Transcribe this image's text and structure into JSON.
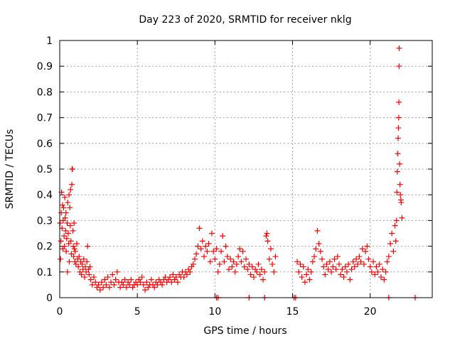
{
  "chart_data": {
    "type": "scatter",
    "title": "Day 223 of 2020, SRMTID for receiver nklg",
    "xlabel": "GPS time / hours",
    "ylabel": "SRMTID / TECUs",
    "xlim": [
      0,
      24
    ],
    "ylim": [
      0,
      1
    ],
    "xticks": [
      0,
      5,
      10,
      15,
      20
    ],
    "xtick_labels": [
      "0",
      "5",
      "10",
      "15",
      "20"
    ],
    "yticks": [
      0,
      0.1,
      0.2,
      0.3,
      0.4,
      0.5,
      0.6,
      0.7,
      0.8,
      0.9,
      1
    ],
    "ytick_labels": [
      "0",
      "0.1",
      "0.2",
      "0.3",
      "0.4",
      "0.5",
      "0.6",
      "0.7",
      "0.8",
      "0.9",
      "1"
    ],
    "grid": true,
    "marker": "+",
    "series": [
      {
        "name": "SRMTID",
        "color": "#ff0000",
        "points": [
          [
            0.02,
            0.29
          ],
          [
            0.05,
            0.15
          ],
          [
            0.08,
            0.22
          ],
          [
            0.1,
            0.33
          ],
          [
            0.12,
            0.41
          ],
          [
            0.15,
            0.27
          ],
          [
            0.18,
            0.36
          ],
          [
            0.2,
            0.19
          ],
          [
            0.22,
            0.3
          ],
          [
            0.25,
            0.35
          ],
          [
            0.28,
            0.24
          ],
          [
            0.3,
            0.2
          ],
          [
            0.33,
            0.39
          ],
          [
            0.35,
            0.31
          ],
          [
            0.38,
            0.26
          ],
          [
            0.4,
            0.33
          ],
          [
            0.42,
            0.18
          ],
          [
            0.45,
            0.23
          ],
          [
            0.48,
            0.29
          ],
          [
            0.5,
            0.1
          ],
          [
            0.52,
            0.37
          ],
          [
            0.55,
            0.25
          ],
          [
            0.58,
            0.21
          ],
          [
            0.6,
            0.4
          ],
          [
            0.62,
            0.14
          ],
          [
            0.65,
            0.35
          ],
          [
            0.68,
            0.28
          ],
          [
            0.7,
            0.42
          ],
          [
            0.72,
            0.22
          ],
          [
            0.75,
            0.17
          ],
          [
            0.78,
            0.44
          ],
          [
            0.8,
            0.5
          ],
          [
            0.82,
            0.5
          ],
          [
            0.85,
            0.26
          ],
          [
            0.88,
            0.2
          ],
          [
            0.9,
            0.16
          ],
          [
            0.92,
            0.29
          ],
          [
            0.95,
            0.19
          ],
          [
            0.98,
            0.14
          ],
          [
            1.0,
            0.18
          ],
          [
            1.05,
            0.13
          ],
          [
            1.1,
            0.21
          ],
          [
            1.15,
            0.15
          ],
          [
            1.2,
            0.12
          ],
          [
            1.25,
            0.16
          ],
          [
            1.3,
            0.1
          ],
          [
            1.35,
            0.14
          ],
          [
            1.4,
            0.09
          ],
          [
            1.45,
            0.13
          ],
          [
            1.5,
            0.11
          ],
          [
            1.55,
            0.15
          ],
          [
            1.6,
            0.08
          ],
          [
            1.65,
            0.12
          ],
          [
            1.7,
            0.1
          ],
          [
            1.75,
            0.14
          ],
          [
            1.8,
            0.2
          ],
          [
            1.85,
            0.11
          ],
          [
            1.9,
            0.09
          ],
          [
            1.95,
            0.12
          ],
          [
            2.0,
            0.07
          ],
          [
            2.1,
            0.05
          ],
          [
            2.2,
            0.08
          ],
          [
            2.3,
            0.06
          ],
          [
            2.4,
            0.04
          ],
          [
            2.5,
            0.05
          ],
          [
            2.6,
            0.03
          ],
          [
            2.7,
            0.06
          ],
          [
            2.8,
            0.04
          ],
          [
            2.9,
            0.07
          ],
          [
            3.0,
            0.05
          ],
          [
            3.1,
            0.08
          ],
          [
            3.2,
            0.04
          ],
          [
            3.3,
            0.06
          ],
          [
            3.4,
            0.09
          ],
          [
            3.5,
            0.05
          ],
          [
            3.6,
            0.07
          ],
          [
            3.7,
            0.1
          ],
          [
            3.8,
            0.06
          ],
          [
            3.9,
            0.04
          ],
          [
            4.0,
            0.06
          ],
          [
            4.1,
            0.05
          ],
          [
            4.2,
            0.07
          ],
          [
            4.3,
            0.04
          ],
          [
            4.4,
            0.06
          ],
          [
            4.5,
            0.05
          ],
          [
            4.6,
            0.07
          ],
          [
            4.7,
            0.04
          ],
          [
            4.8,
            0.05
          ],
          [
            4.9,
            0.06
          ],
          [
            5.0,
            0.05
          ],
          [
            5.1,
            0.07
          ],
          [
            5.2,
            0.06
          ],
          [
            5.3,
            0.08
          ],
          [
            5.4,
            0.05
          ],
          [
            5.5,
            0.03
          ],
          [
            5.6,
            0.06
          ],
          [
            5.7,
            0.04
          ],
          [
            5.8,
            0.05
          ],
          [
            5.9,
            0.07
          ],
          [
            6.0,
            0.05
          ],
          [
            6.1,
            0.04
          ],
          [
            6.2,
            0.06
          ],
          [
            6.3,
            0.05
          ],
          [
            6.4,
            0.07
          ],
          [
            6.5,
            0.06
          ],
          [
            6.6,
            0.05
          ],
          [
            6.7,
            0.07
          ],
          [
            6.8,
            0.08
          ],
          [
            6.9,
            0.06
          ],
          [
            7.0,
            0.07
          ],
          [
            7.1,
            0.08
          ],
          [
            7.2,
            0.06
          ],
          [
            7.3,
            0.09
          ],
          [
            7.4,
            0.07
          ],
          [
            7.5,
            0.08
          ],
          [
            7.6,
            0.06
          ],
          [
            7.7,
            0.09
          ],
          [
            7.8,
            0.08
          ],
          [
            7.9,
            0.1
          ],
          [
            8.0,
            0.08
          ],
          [
            8.1,
            0.1
          ],
          [
            8.2,
            0.09
          ],
          [
            8.3,
            0.11
          ],
          [
            8.4,
            0.1
          ],
          [
            8.5,
            0.12
          ],
          [
            8.6,
            0.13
          ],
          [
            8.7,
            0.15
          ],
          [
            8.8,
            0.17
          ],
          [
            8.9,
            0.2
          ],
          [
            9.0,
            0.27
          ],
          [
            9.1,
            0.19
          ],
          [
            9.2,
            0.22
          ],
          [
            9.3,
            0.16
          ],
          [
            9.4,
            0.2
          ],
          [
            9.5,
            0.18
          ],
          [
            9.6,
            0.21
          ],
          [
            9.7,
            0.14
          ],
          [
            9.8,
            0.25
          ],
          [
            9.9,
            0.18
          ],
          [
            10.0,
            0.15
          ],
          [
            10.1,
            0.19
          ],
          [
            10.2,
            0.1
          ],
          [
            10.3,
            0.13
          ],
          [
            10.4,
            0.18
          ],
          [
            10.5,
            0.24
          ],
          [
            10.6,
            0.14
          ],
          [
            10.7,
            0.2
          ],
          [
            10.8,
            0.16
          ],
          [
            10.9,
            0.11
          ],
          [
            11.0,
            0.15
          ],
          [
            11.1,
            0.12
          ],
          [
            11.2,
            0.14
          ],
          [
            11.3,
            0.1
          ],
          [
            11.4,
            0.13
          ],
          [
            11.5,
            0.16
          ],
          [
            11.6,
            0.19
          ],
          [
            11.7,
            0.14
          ],
          [
            11.8,
            0.18
          ],
          [
            11.9,
            0.12
          ],
          [
            12.0,
            0.15
          ],
          [
            12.1,
            0.11
          ],
          [
            12.2,
            0.13
          ],
          [
            12.3,
            0.09
          ],
          [
            12.4,
            0.12
          ],
          [
            12.5,
            0.08
          ],
          [
            12.6,
            0.11
          ],
          [
            12.7,
            0.1
          ],
          [
            12.8,
            0.13
          ],
          [
            12.9,
            0.09
          ],
          [
            13.0,
            0.11
          ],
          [
            13.1,
            0.07
          ],
          [
            13.2,
            0.1
          ],
          [
            13.3,
            0.24
          ],
          [
            13.35,
            0.25
          ],
          [
            13.4,
            0.22
          ],
          [
            13.5,
            0.15
          ],
          [
            13.6,
            0.19
          ],
          [
            13.7,
            0.13
          ],
          [
            13.8,
            0.1
          ],
          [
            13.9,
            0.16
          ],
          [
            15.3,
            0.14
          ],
          [
            15.4,
            0.1
          ],
          [
            15.5,
            0.13
          ],
          [
            15.6,
            0.08
          ],
          [
            15.7,
            0.12
          ],
          [
            15.8,
            0.06
          ],
          [
            15.9,
            0.09
          ],
          [
            16.0,
            0.11
          ],
          [
            16.1,
            0.07
          ],
          [
            16.2,
            0.1
          ],
          [
            16.3,
            0.14
          ],
          [
            16.4,
            0.16
          ],
          [
            16.5,
            0.19
          ],
          [
            16.6,
            0.26
          ],
          [
            16.7,
            0.21
          ],
          [
            16.8,
            0.18
          ],
          [
            16.9,
            0.15
          ],
          [
            17.0,
            0.12
          ],
          [
            17.1,
            0.09
          ],
          [
            17.2,
            0.13
          ],
          [
            17.3,
            0.11
          ],
          [
            17.4,
            0.14
          ],
          [
            17.5,
            0.1
          ],
          [
            17.6,
            0.12
          ],
          [
            17.7,
            0.15
          ],
          [
            17.8,
            0.11
          ],
          [
            17.9,
            0.16
          ],
          [
            18.0,
            0.13
          ],
          [
            18.1,
            0.09
          ],
          [
            18.2,
            0.11
          ],
          [
            18.3,
            0.08
          ],
          [
            18.4,
            0.12
          ],
          [
            18.5,
            0.1
          ],
          [
            18.6,
            0.13
          ],
          [
            18.7,
            0.07
          ],
          [
            18.8,
            0.11
          ],
          [
            18.9,
            0.14
          ],
          [
            19.0,
            0.12
          ],
          [
            19.1,
            0.15
          ],
          [
            19.2,
            0.13
          ],
          [
            19.3,
            0.16
          ],
          [
            19.4,
            0.14
          ],
          [
            19.5,
            0.19
          ],
          [
            19.6,
            0.13
          ],
          [
            19.7,
            0.18
          ],
          [
            19.8,
            0.2
          ],
          [
            19.9,
            0.15
          ],
          [
            20.0,
            0.12
          ],
          [
            20.1,
            0.1
          ],
          [
            20.2,
            0.14
          ],
          [
            20.3,
            0.09
          ],
          [
            20.4,
            0.12
          ],
          [
            20.5,
            0.1
          ],
          [
            20.6,
            0.13
          ],
          [
            20.7,
            0.08
          ],
          [
            20.8,
            0.11
          ],
          [
            20.9,
            0.07
          ],
          [
            21.0,
            0.1
          ],
          [
            21.1,
            0.14
          ],
          [
            21.2,
            0.16
          ],
          [
            21.3,
            0.21
          ],
          [
            21.4,
            0.25
          ],
          [
            21.5,
            0.18
          ],
          [
            21.6,
            0.28
          ],
          [
            21.65,
            0.22
          ],
          [
            21.7,
            0.3
          ],
          [
            21.72,
            0.41
          ],
          [
            21.75,
            0.49
          ],
          [
            21.78,
            0.56
          ],
          [
            21.8,
            0.62
          ],
          [
            21.82,
            0.66
          ],
          [
            21.84,
            0.7
          ],
          [
            21.85,
            0.76
          ],
          [
            21.86,
            0.9
          ],
          [
            21.87,
            0.97
          ],
          [
            21.9,
            0.52
          ],
          [
            21.92,
            0.44
          ],
          [
            21.95,
            0.4
          ],
          [
            21.98,
            0.38
          ],
          [
            22.0,
            0.37
          ],
          [
            22.05,
            0.31
          ],
          [
            10.1,
            0.0
          ],
          [
            10.2,
            0.0
          ],
          [
            12.2,
            0.0
          ],
          [
            13.2,
            0.0
          ],
          [
            15.1,
            0.0
          ],
          [
            15.2,
            0.0
          ],
          [
            21.2,
            0.0
          ],
          [
            22.9,
            0.0
          ]
        ]
      }
    ]
  }
}
